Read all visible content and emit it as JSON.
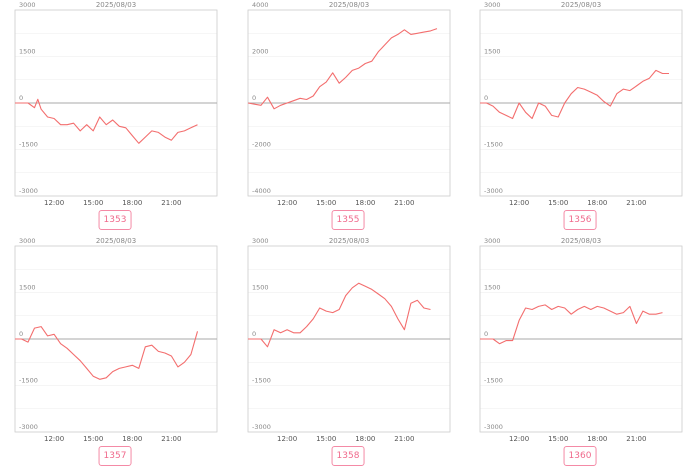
{
  "colors": {
    "line": "#f36e6e",
    "frame": "#cccccc",
    "grid": "#ececec",
    "zero": "#aaaaaa",
    "text": "#888888",
    "badge": "#f06a8c"
  },
  "chart_data": [
    {
      "type": "line",
      "title": "2025/08/03",
      "badge": "1353",
      "ylim": [
        -3000,
        3000
      ],
      "yticks": [
        -3000,
        -1500,
        0,
        1500,
        3000
      ],
      "xticks": [
        "12:00",
        "15:00",
        "18:00",
        "21:00"
      ],
      "xlim": [
        9,
        24.5
      ],
      "x": [
        9,
        9.5,
        10,
        10.5,
        10.75,
        11,
        11.5,
        12,
        12.5,
        13,
        13.5,
        14,
        14.5,
        15,
        15.5,
        16,
        16.5,
        17,
        17.5,
        18,
        18.5,
        19,
        19.5,
        20,
        20.5,
        21,
        21.5,
        22,
        22.5,
        23
      ],
      "values": [
        0,
        0,
        0,
        -150,
        120,
        -200,
        -450,
        -500,
        -700,
        -700,
        -650,
        -900,
        -700,
        -900,
        -450,
        -700,
        -550,
        -750,
        -800,
        -1050,
        -1300,
        -1100,
        -900,
        -950,
        -1100,
        -1200,
        -950,
        -900,
        -800,
        -700
      ]
    },
    {
      "type": "line",
      "title": "2025/08/03",
      "badge": "1355",
      "ylim": [
        -4000,
        4000
      ],
      "yticks": [
        -4000,
        -2000,
        0,
        2000,
        4000
      ],
      "xticks": [
        "12:00",
        "15:00",
        "18:00",
        "21:00"
      ],
      "xlim": [
        9,
        24.5
      ],
      "x": [
        9,
        9.5,
        10,
        10.5,
        11,
        11.5,
        12,
        12.5,
        13,
        13.5,
        14,
        14.5,
        15,
        15.5,
        16,
        16.5,
        17,
        17.5,
        18,
        18.5,
        19,
        19.5,
        20,
        20.5,
        21,
        21.5,
        22,
        22.5,
        23,
        23.5
      ],
      "values": [
        0,
        -50,
        -100,
        250,
        -250,
        -100,
        0,
        100,
        200,
        150,
        300,
        700,
        900,
        1300,
        850,
        1100,
        1400,
        1500,
        1700,
        1800,
        2200,
        2500,
        2800,
        2950,
        3150,
        2950,
        3000,
        3050,
        3100,
        3200
      ]
    },
    {
      "type": "line",
      "title": "2025/08/03",
      "badge": "1356",
      "ylim": [
        -3000,
        3000
      ],
      "yticks": [
        -3000,
        -1500,
        0,
        1500,
        3000
      ],
      "xticks": [
        "12:00",
        "15:00",
        "18:00",
        "21:00"
      ],
      "xlim": [
        9,
        24.5
      ],
      "x": [
        9,
        9.5,
        10,
        10.5,
        11,
        11.5,
        12,
        12.5,
        13,
        13.5,
        14,
        14.5,
        15,
        15.5,
        16,
        16.5,
        17,
        17.5,
        18,
        18.5,
        19,
        19.5,
        20,
        20.5,
        21,
        21.5,
        22,
        22.5,
        23,
        23.5
      ],
      "values": [
        0,
        0,
        -100,
        -300,
        -400,
        -500,
        0,
        -300,
        -500,
        0,
        -100,
        -400,
        -450,
        0,
        300,
        500,
        450,
        350,
        250,
        50,
        -100,
        300,
        450,
        400,
        550,
        700,
        800,
        1050,
        950,
        950
      ]
    },
    {
      "type": "line",
      "title": "2025/08/03",
      "badge": "1357",
      "ylim": [
        -3000,
        3000
      ],
      "yticks": [
        -3000,
        -1500,
        0,
        1500,
        3000
      ],
      "xticks": [
        "12:00",
        "15:00",
        "18:00",
        "21:00"
      ],
      "xlim": [
        9,
        24.5
      ],
      "x": [
        9,
        9.5,
        10,
        10.5,
        11,
        11.5,
        12,
        12.5,
        13,
        13.5,
        14,
        14.5,
        15,
        15.5,
        16,
        16.5,
        17,
        17.5,
        18,
        18.5,
        19,
        19.5,
        20,
        20.5,
        21,
        21.5,
        22,
        22.5,
        23
      ],
      "values": [
        0,
        0,
        -100,
        350,
        400,
        100,
        150,
        -150,
        -300,
        -500,
        -700,
        -950,
        -1200,
        -1300,
        -1250,
        -1050,
        -950,
        -900,
        -850,
        -950,
        -250,
        -200,
        -400,
        -450,
        -550,
        -900,
        -750,
        -500,
        250
      ]
    },
    {
      "type": "line",
      "title": "2025/08/03",
      "badge": "1358",
      "ylim": [
        -3000,
        3000
      ],
      "yticks": [
        -3000,
        -1500,
        0,
        1500,
        3000
      ],
      "xticks": [
        "12:00",
        "15:00",
        "18:00",
        "21:00"
      ],
      "xlim": [
        9,
        24.5
      ],
      "x": [
        9,
        9.5,
        10,
        10.5,
        11,
        11.5,
        12,
        12.5,
        13,
        13.5,
        14,
        14.5,
        15,
        15.5,
        16,
        16.5,
        17,
        17.5,
        18,
        18.5,
        19,
        19.5,
        20,
        20.5,
        21,
        21.5,
        22,
        22.5,
        23
      ],
      "values": [
        0,
        0,
        0,
        -250,
        300,
        200,
        300,
        200,
        200,
        400,
        650,
        1000,
        900,
        850,
        950,
        1400,
        1650,
        1800,
        1700,
        1600,
        1450,
        1300,
        1050,
        650,
        300,
        1150,
        1250,
        1000,
        950
      ]
    },
    {
      "type": "line",
      "title": "2025/08/03",
      "badge": "1360",
      "ylim": [
        -3000,
        3000
      ],
      "yticks": [
        -3000,
        -1500,
        0,
        1500,
        3000
      ],
      "xticks": [
        "12:00",
        "15:00",
        "18:00",
        "21:00"
      ],
      "xlim": [
        9,
        24.5
      ],
      "x": [
        9,
        9.5,
        10,
        10.5,
        11,
        11.5,
        12,
        12.5,
        13,
        13.5,
        14,
        14.5,
        15,
        15.5,
        16,
        16.5,
        17,
        17.5,
        18,
        18.5,
        19,
        19.5,
        20,
        20.5,
        21,
        21.5,
        22,
        22.5,
        23
      ],
      "values": [
        0,
        0,
        0,
        -150,
        -50,
        -50,
        600,
        1000,
        950,
        1050,
        1100,
        950,
        1050,
        1000,
        800,
        950,
        1050,
        950,
        1050,
        1000,
        900,
        800,
        850,
        1050,
        500,
        900,
        800,
        800,
        850
      ]
    }
  ]
}
